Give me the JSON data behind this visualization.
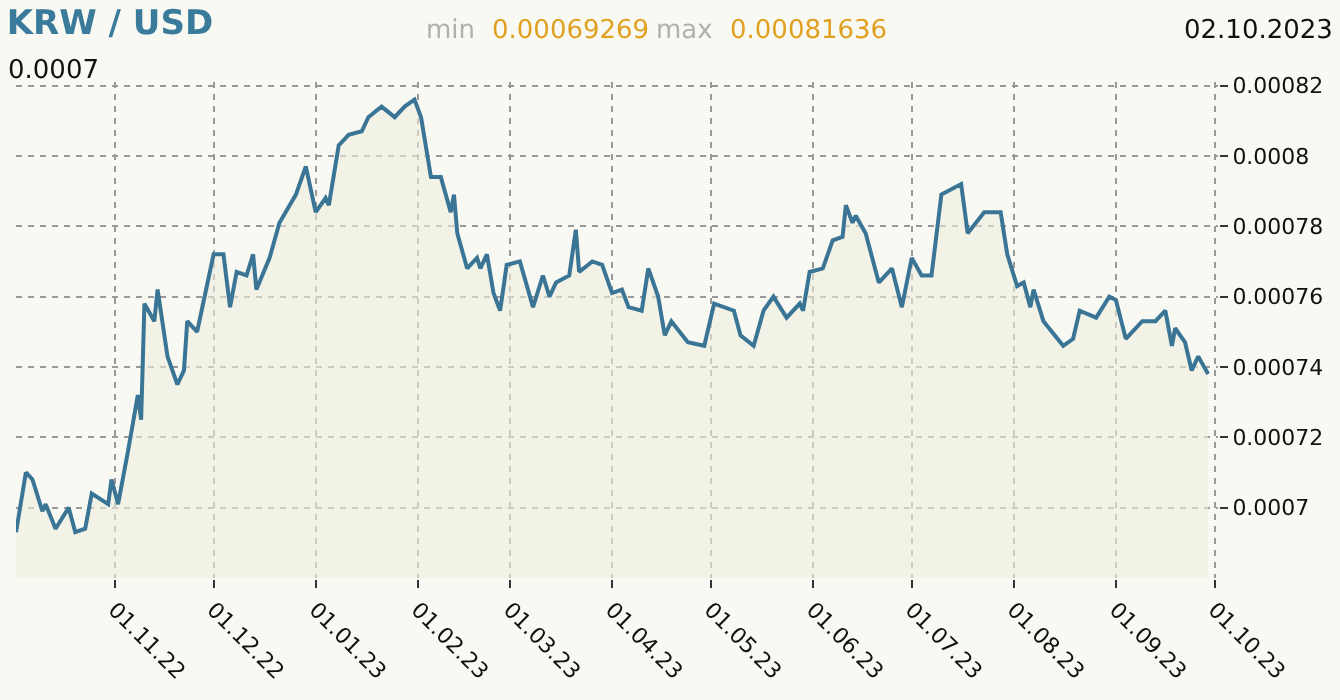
{
  "chart_data": {
    "type": "area",
    "title": "KRW / USD",
    "annotations": [
      "min",
      "0.00069269",
      "max",
      "0.00081636",
      "02.10.2023",
      "0.0007"
    ],
    "x": [
      "2022-10-02",
      "2022-10-05",
      "2022-10-07",
      "2022-10-10",
      "2022-10-11",
      "2022-10-14",
      "2022-10-18",
      "2022-10-20",
      "2022-10-23",
      "2022-10-25",
      "2022-10-30",
      "2022-10-31",
      "2022-11-02",
      "2022-11-05",
      "2022-11-08",
      "2022-11-09",
      "2022-11-10",
      "2022-11-13",
      "2022-11-14",
      "2022-11-17",
      "2022-11-20",
      "2022-11-22",
      "2022-11-23",
      "2022-11-26",
      "2022-12-01",
      "2022-12-04",
      "2022-12-06",
      "2022-12-08",
      "2022-12-11",
      "2022-12-13",
      "2022-12-14",
      "2022-12-18",
      "2022-12-21",
      "2022-12-26",
      "2022-12-29",
      "2023-01-01",
      "2023-01-04",
      "2023-01-05",
      "2023-01-08",
      "2023-01-11",
      "2023-01-15",
      "2023-01-17",
      "2023-01-21",
      "2023-01-25",
      "2023-01-28",
      "2023-01-31",
      "2023-02-02",
      "2023-02-05",
      "2023-02-08",
      "2023-02-11",
      "2023-02-12",
      "2023-02-13",
      "2023-02-16",
      "2023-02-19",
      "2023-02-20",
      "2023-02-22",
      "2023-02-24",
      "2023-02-26",
      "2023-02-28",
      "2023-03-04",
      "2023-03-08",
      "2023-03-11",
      "2023-03-13",
      "2023-03-15",
      "2023-03-19",
      "2023-03-21",
      "2023-03-22",
      "2023-03-26",
      "2023-03-29",
      "2023-04-01",
      "2023-04-04",
      "2023-04-06",
      "2023-04-10",
      "2023-04-12",
      "2023-04-15",
      "2023-04-17",
      "2023-04-19",
      "2023-04-24",
      "2023-04-29",
      "2023-05-02",
      "2023-05-08",
      "2023-05-10",
      "2023-05-14",
      "2023-05-17",
      "2023-05-20",
      "2023-05-24",
      "2023-05-28",
      "2023-05-29",
      "2023-05-31",
      "2023-06-04",
      "2023-06-07",
      "2023-06-10",
      "2023-06-11",
      "2023-06-13",
      "2023-06-14",
      "2023-06-17",
      "2023-06-21",
      "2023-06-25",
      "2023-06-28",
      "2023-07-01",
      "2023-07-04",
      "2023-07-07",
      "2023-07-10",
      "2023-07-16",
      "2023-07-18",
      "2023-07-23",
      "2023-07-28",
      "2023-07-30",
      "2023-08-02",
      "2023-08-04",
      "2023-08-06",
      "2023-08-07",
      "2023-08-10",
      "2023-08-16",
      "2023-08-19",
      "2023-08-21",
      "2023-08-26",
      "2023-08-30",
      "2023-09-01",
      "2023-09-04",
      "2023-09-09",
      "2023-09-13",
      "2023-09-16",
      "2023-09-18",
      "2023-09-19",
      "2023-09-22",
      "2023-09-24",
      "2023-09-26",
      "2023-09-29"
    ],
    "series": [
      {
        "color": "#3a7595",
        "values": [
          0.000693,
          0.00071,
          0.000708,
          0.000699,
          0.000701,
          0.000694,
          0.0007,
          0.000693,
          0.000694,
          0.000704,
          0.000701,
          0.000708,
          0.000701,
          0.000716,
          0.000732,
          0.000725,
          0.000758,
          0.000753,
          0.000762,
          0.000743,
          0.000735,
          0.000739,
          0.000753,
          0.00075,
          0.000772,
          0.000772,
          0.000757,
          0.000767,
          0.000766,
          0.000772,
          0.000762,
          0.000771,
          0.000781,
          0.000789,
          0.000797,
          0.000784,
          0.000788,
          0.000786,
          0.000803,
          0.000806,
          0.000807,
          0.000811,
          0.000814,
          0.000811,
          0.000814,
          0.000816,
          0.000811,
          0.000794,
          0.000794,
          0.000784,
          0.000789,
          0.000778,
          0.000768,
          0.000771,
          0.000768,
          0.000772,
          0.000761,
          0.000756,
          0.000769,
          0.00077,
          0.000757,
          0.000766,
          0.00076,
          0.000764,
          0.000766,
          0.000779,
          0.000767,
          0.00077,
          0.000769,
          0.000761,
          0.000762,
          0.000757,
          0.000756,
          0.000768,
          0.00076,
          0.000749,
          0.000753,
          0.000747,
          0.000746,
          0.000758,
          0.000756,
          0.000749,
          0.000746,
          0.000756,
          0.00076,
          0.000754,
          0.000758,
          0.000756,
          0.000767,
          0.000768,
          0.000776,
          0.000777,
          0.000786,
          0.000781,
          0.000783,
          0.000778,
          0.000764,
          0.000768,
          0.000757,
          0.000771,
          0.000766,
          0.000766,
          0.000789,
          0.000792,
          0.000778,
          0.000784,
          0.000784,
          0.000772,
          0.000763,
          0.000764,
          0.000757,
          0.000762,
          0.000753,
          0.000746,
          0.000748,
          0.000756,
          0.000754,
          0.00076,
          0.000759,
          0.000748,
          0.000753,
          0.000753,
          0.000756,
          0.000746,
          0.000751,
          0.000747,
          0.000739,
          0.000743,
          0.000738
        ]
      }
    ],
    "xlim": [
      "2022-10-02",
      "2023-10-02"
    ],
    "xticks": [
      {
        "value": "2022-11-01",
        "label": "01.11.22"
      },
      {
        "value": "2022-12-01",
        "label": "01.12.22"
      },
      {
        "value": "2023-01-01",
        "label": "01.01.23"
      },
      {
        "value": "2023-02-01",
        "label": "01.02.23"
      },
      {
        "value": "2023-03-01",
        "label": "01.03.23"
      },
      {
        "value": "2023-04-01",
        "label": "01.04.23"
      },
      {
        "value": "2023-05-01",
        "label": "01.05.23"
      },
      {
        "value": "2023-06-01",
        "label": "01.06.23"
      },
      {
        "value": "2023-07-01",
        "label": "01.07.23"
      },
      {
        "value": "2023-08-01",
        "label": "01.08.23"
      },
      {
        "value": "2023-09-01",
        "label": "01.09.23"
      },
      {
        "value": "2023-10-01",
        "label": "01.10.23"
      }
    ],
    "ylim": [
      0.00068,
      0.000821
    ],
    "yticks": [
      0.0007,
      0.00072,
      0.00074,
      0.00076,
      0.00078,
      0.0008,
      0.00082
    ],
    "grid": true,
    "marker": "none",
    "line_style": "solid"
  }
}
